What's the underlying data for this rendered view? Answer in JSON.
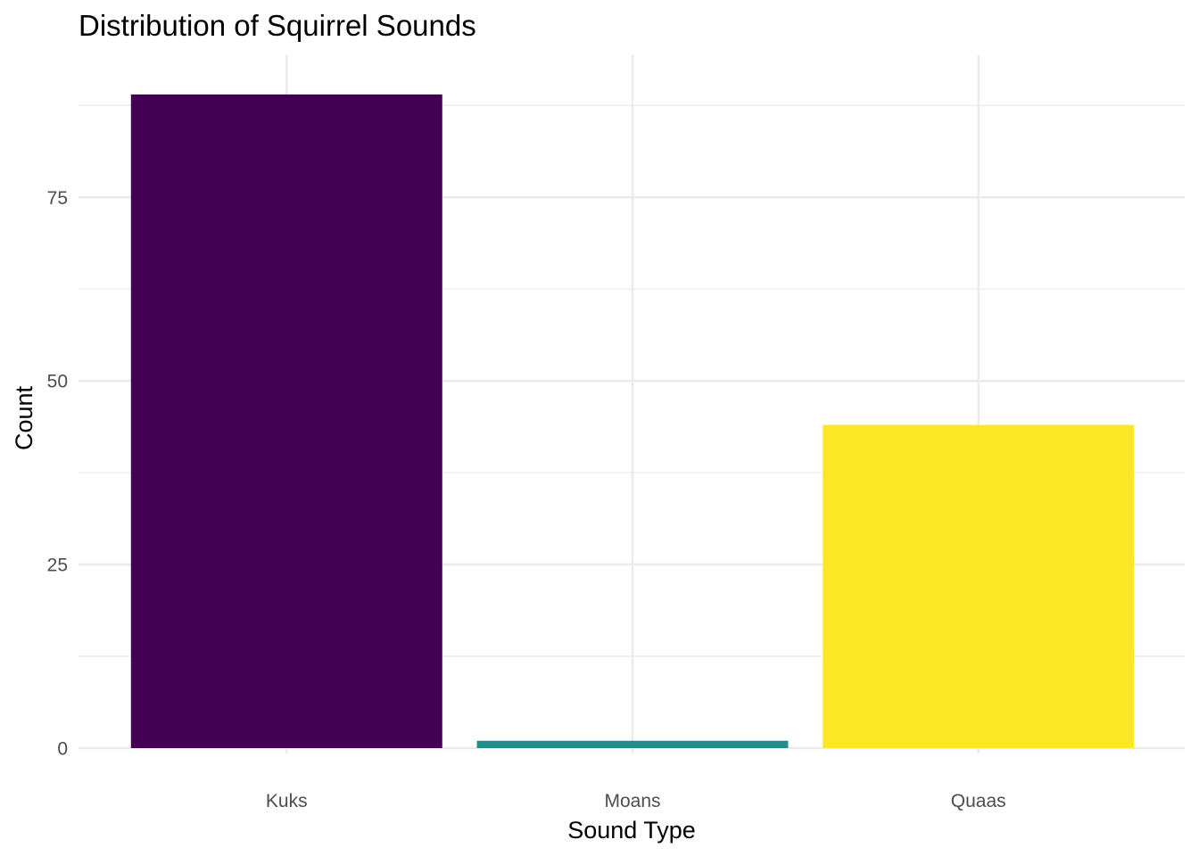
{
  "chart_data": {
    "type": "bar",
    "title": "Distribution of Squirrel Sounds",
    "xlabel": "Sound Type",
    "ylabel": "Count",
    "categories": [
      "Kuks",
      "Moans",
      "Quaas"
    ],
    "values": [
      89,
      1,
      44
    ],
    "colors": [
      "#440154",
      "#21908C",
      "#FDE725"
    ],
    "ylim": [
      0,
      93
    ],
    "y_ticks": [
      0,
      25,
      50,
      75
    ],
    "y_tick_labels": [
      "0",
      "25",
      "50",
      "75"
    ],
    "y_minor_ticks": [
      12.5,
      37.5,
      62.5,
      87.5
    ],
    "grid": true,
    "legend": "none"
  }
}
